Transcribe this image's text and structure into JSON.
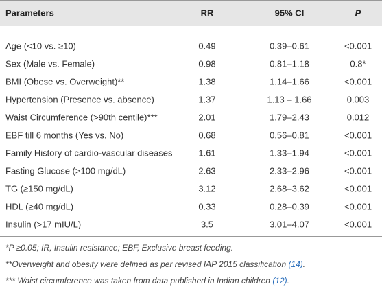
{
  "table": {
    "header": [
      "Parameters",
      "RR",
      "95% CI",
      "P"
    ],
    "rows": [
      [
        "Age (<10 vs. ≥10)",
        "0.49",
        "0.39–0.61",
        "<0.001"
      ],
      [
        "Sex (Male vs. Female)",
        "0.98",
        "0.81–1.18",
        "0.8*"
      ],
      [
        "BMI (Obese vs. Overweight)**",
        "1.38",
        "1.14–1.66",
        "<0.001"
      ],
      [
        "Hypertension (Presence vs. absence)",
        "1.37",
        "1.13 – 1.66",
        "0.003"
      ],
      [
        "Waist Circumference (>90th centile)***",
        "2.01",
        "1.79–2.43",
        "0.012"
      ],
      [
        "EBF till 6 months (Yes vs. No)",
        "0.68",
        "0.56–0.81",
        "<0.001"
      ],
      [
        "Family History of cardio-vascular diseases",
        "1.61",
        "1.33–1.94",
        "<0.001"
      ],
      [
        "Fasting Glucose (>100 mg/dL)",
        "2.63",
        "2.33–2.96",
        "<0.001"
      ],
      [
        "TG (≥150 mg/dL)",
        "3.12",
        "2.68–3.62",
        "<0.001"
      ],
      [
        "HDL (≥40 mg/dL)",
        "0.33",
        "0.28–0.39",
        "<0.001"
      ],
      [
        "Insulin (>17 mIU/L)",
        "3.5",
        "3.01–4.07",
        "<0.001"
      ]
    ]
  },
  "footnotes": [
    {
      "text": "*P ≥0.05; IR, Insulin resistance; EBF, Exclusive breast feeding."
    },
    {
      "text": "**Overweight and obesity were defined as per revised IAP 2015 classification ",
      "ref": "(14)",
      "end": "."
    },
    {
      "text": "*** Waist circumference was taken from data published in Indian children ",
      "ref": "(12)",
      "end": "."
    }
  ]
}
